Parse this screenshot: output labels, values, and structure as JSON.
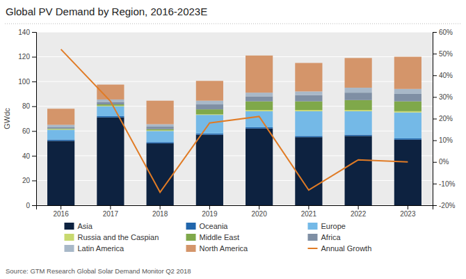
{
  "chart_data": {
    "type": "bar",
    "stacked": true,
    "title": "Global PV Demand by Region, 2016-2023E",
    "categories": [
      "2016",
      "2017",
      "2018",
      "2019",
      "2020",
      "2021",
      "2022",
      "2023"
    ],
    "series": [
      {
        "name": "Asia",
        "color": "#0d2240",
        "values": [
          52,
          71,
          50,
          57,
          62,
          55,
          56,
          53
        ]
      },
      {
        "name": "Oceania",
        "color": "#2166ac",
        "values": [
          1,
          1,
          1,
          1,
          1,
          1,
          1,
          1
        ]
      },
      {
        "name": "Europe",
        "color": "#74b9e7",
        "values": [
          8,
          8,
          9,
          15,
          13,
          20,
          19,
          21
        ]
      },
      {
        "name": "Russia and the Caspian",
        "color": "#c8d96f",
        "values": [
          0.5,
          0.5,
          0.5,
          0.5,
          1,
          1,
          1,
          1
        ]
      },
      {
        "name": "Middle East",
        "color": "#7fa84a",
        "values": [
          0.5,
          1,
          1,
          4,
          7,
          7,
          8,
          8
        ]
      },
      {
        "name": "Africa",
        "color": "#7f8fa4",
        "values": [
          1,
          2,
          2,
          4,
          4,
          5,
          6,
          6
        ]
      },
      {
        "name": "Latin America",
        "color": "#a8b8c8",
        "values": [
          2,
          2,
          2,
          3,
          3,
          3,
          4,
          4
        ]
      },
      {
        "name": "North America",
        "color": "#d4956a",
        "values": [
          13,
          12,
          19,
          16,
          30,
          23,
          24,
          26
        ]
      },
      {
        "name": "Annual Growth",
        "type": "line",
        "axis": "y2",
        "color": "#e07b25",
        "values": [
          52,
          28,
          -14,
          18,
          21,
          -13,
          1,
          0
        ]
      }
    ],
    "ylabel": "GWdc",
    "ylim": [
      0,
      140
    ],
    "yticks": [
      0,
      20,
      40,
      60,
      80,
      100,
      120,
      140
    ],
    "y2lim": [
      -20,
      60
    ],
    "y2ticks": [
      {
        "value": -20,
        "label": "-20%"
      },
      {
        "value": -10,
        "label": "-10%"
      },
      {
        "value": 0,
        "label": "0%"
      },
      {
        "value": 10,
        "label": "10%"
      },
      {
        "value": 20,
        "label": "20%"
      },
      {
        "value": 30,
        "label": "30%"
      },
      {
        "value": 40,
        "label": "40%"
      },
      {
        "value": 50,
        "label": "50%"
      },
      {
        "value": 60,
        "label": "60%"
      }
    ],
    "grid": true,
    "legend": "bottom",
    "annotations": [
      "Source: GTM Research Global Solar Demand Monitor Q2 2018"
    ]
  }
}
